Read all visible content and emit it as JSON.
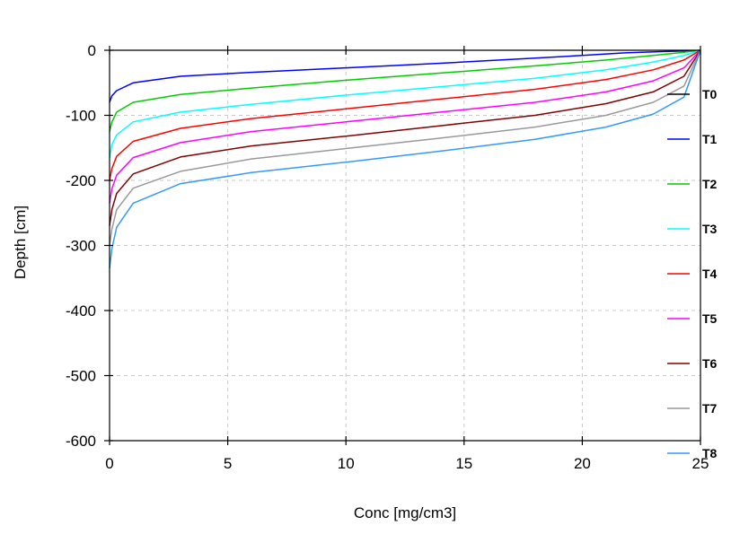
{
  "chart_data": {
    "type": "line",
    "title": "",
    "xlabel": "Conc [mg/cm3]",
    "ylabel": "Depth [cm]",
    "xlim": [
      0,
      25
    ],
    "ylim": [
      -600,
      0
    ],
    "xticks": [
      0,
      5,
      10,
      15,
      20,
      25
    ],
    "yticks": [
      0,
      -100,
      -200,
      -300,
      -400,
      -500,
      -600
    ],
    "grid": true,
    "legend_position": "right",
    "series": [
      {
        "name": "T0",
        "color": "#000000",
        "x": [],
        "y": []
      },
      {
        "name": "T1",
        "color": "#0000ff",
        "x": [
          0.0,
          0.1,
          0.3,
          1.0,
          3.0,
          6.0,
          10.0,
          14.0,
          18.0,
          20.0,
          21.8,
          23.5,
          24.5,
          25.0
        ],
        "y": [
          -80,
          -70,
          -62,
          -50,
          -40,
          -34,
          -27,
          -20,
          -12,
          -8,
          -4,
          -2,
          -1,
          0
        ]
      },
      {
        "name": "T2",
        "color": "#00cc00",
        "x": [
          0.0,
          0.1,
          0.3,
          1.0,
          3.0,
          6.0,
          10.0,
          14.0,
          18.0,
          21.0,
          23.0,
          24.3,
          25.0
        ],
        "y": [
          -125,
          -110,
          -95,
          -80,
          -68,
          -58,
          -46,
          -35,
          -24,
          -15,
          -8,
          -3,
          0
        ]
      },
      {
        "name": "T3",
        "color": "#00ffff",
        "x": [
          0.0,
          0.1,
          0.3,
          1.0,
          3.0,
          6.0,
          10.0,
          14.0,
          18.0,
          21.0,
          23.0,
          24.3,
          25.0
        ],
        "y": [
          -165,
          -145,
          -130,
          -110,
          -95,
          -83,
          -69,
          -56,
          -43,
          -30,
          -18,
          -8,
          0
        ]
      },
      {
        "name": "T4",
        "color": "#ff0000",
        "x": [
          0.0,
          0.1,
          0.3,
          1.0,
          3.0,
          6.0,
          10.0,
          14.0,
          18.0,
          21.0,
          23.0,
          24.3,
          25.0
        ],
        "y": [
          -200,
          -182,
          -163,
          -140,
          -120,
          -105,
          -90,
          -75,
          -60,
          -45,
          -30,
          -15,
          0
        ]
      },
      {
        "name": "T5",
        "color": "#ff00ff",
        "x": [
          0.0,
          0.1,
          0.3,
          1.0,
          3.0,
          6.0,
          10.0,
          14.0,
          18.0,
          21.0,
          23.0,
          24.3,
          25.0
        ],
        "y": [
          -235,
          -213,
          -192,
          -165,
          -142,
          -125,
          -110,
          -95,
          -80,
          -64,
          -47,
          -27,
          0
        ]
      },
      {
        "name": "T6",
        "color": "#800000",
        "x": [
          0.0,
          0.1,
          0.3,
          1.0,
          3.0,
          6.0,
          10.0,
          14.0,
          18.0,
          21.0,
          23.0,
          24.3,
          25.0
        ],
        "y": [
          -270,
          -245,
          -220,
          -190,
          -164,
          -147,
          -132,
          -116,
          -100,
          -82,
          -64,
          -40,
          0
        ]
      },
      {
        "name": "T7",
        "color": "#999999",
        "x": [
          0.0,
          0.1,
          0.3,
          1.0,
          3.0,
          6.0,
          10.0,
          14.0,
          18.0,
          21.0,
          23.0,
          24.3,
          25.0
        ],
        "y": [
          -300,
          -275,
          -245,
          -212,
          -186,
          -167,
          -151,
          -135,
          -118,
          -100,
          -80,
          -55,
          0
        ]
      },
      {
        "name": "T8",
        "color": "#3399ff",
        "x": [
          0.0,
          0.1,
          0.3,
          1.0,
          3.0,
          6.0,
          10.0,
          14.0,
          18.0,
          21.0,
          23.0,
          24.3,
          25.0
        ],
        "y": [
          -335,
          -305,
          -272,
          -235,
          -205,
          -188,
          -172,
          -155,
          -137,
          -118,
          -98,
          -72,
          0
        ]
      }
    ]
  }
}
